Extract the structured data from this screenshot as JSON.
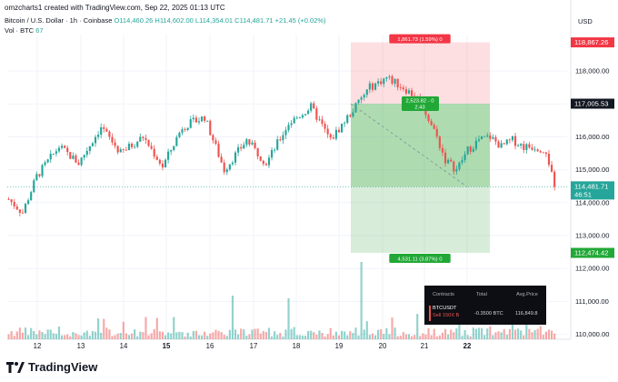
{
  "header": {
    "line1": "omzcharts1 created with TradingView.com, Sep 22, 2025 01:13 UTC",
    "title": "Bitcoin / U.S. Dollar · 1h · Coinbase",
    "open": "O114,460.26",
    "high": "H114,602.00",
    "low": "L114,354.01",
    "close": "C114,481.71",
    "change": "+21.45 (+0.02%)",
    "vol_label": "Vol · BTC",
    "vol_value": "67"
  },
  "currency": "USD",
  "logo_text": "TradingView",
  "chart_data": {
    "type": "candlestick",
    "symbol": "Bitcoin / U.S. Dollar",
    "interval": "1h",
    "exchange": "Coinbase",
    "y_ticks": [
      110000,
      111000,
      112000,
      113000,
      114000,
      115000,
      116000,
      117000,
      118000
    ],
    "y_tick_labels": [
      "110,000.00",
      "111,000.00",
      "112,000.00",
      "113,000.00",
      "114,000.00",
      "115,000.00",
      "116,000.00",
      "117,000.00",
      "118,000.00"
    ],
    "ylim": [
      109600,
      119200
    ],
    "x_ticks": [
      "12",
      "13",
      "14",
      "15",
      "16",
      "17",
      "18",
      "19",
      "20",
      "21",
      "22"
    ],
    "x_bold": [
      "15",
      "22"
    ],
    "last_price": "114,481.71",
    "countdown": "46:51",
    "approx_close_path": [
      [
        0,
        114100
      ],
      [
        5,
        113700
      ],
      [
        10,
        114800
      ],
      [
        18,
        115700
      ],
      [
        25,
        115200
      ],
      [
        33,
        116300
      ],
      [
        40,
        115500
      ],
      [
        48,
        116000
      ],
      [
        55,
        115100
      ],
      [
        62,
        116300
      ],
      [
        70,
        116600
      ],
      [
        77,
        115000
      ],
      [
        85,
        115900
      ],
      [
        92,
        115200
      ],
      [
        100,
        116400
      ],
      [
        108,
        116900
      ],
      [
        115,
        115900
      ],
      [
        122,
        116700
      ],
      [
        129,
        117500
      ],
      [
        135,
        117800
      ],
      [
        141,
        117500
      ],
      [
        147,
        117100
      ],
      [
        152,
        116200
      ],
      [
        156,
        115300
      ],
      [
        160,
        115000
      ],
      [
        164,
        115600
      ],
      [
        168,
        115900
      ],
      [
        172,
        116000
      ],
      [
        176,
        115700
      ],
      [
        180,
        115900
      ],
      [
        184,
        115700
      ],
      [
        188,
        115700
      ],
      [
        192,
        115600
      ],
      [
        195,
        114481.71
      ]
    ],
    "position": {
      "side": "short",
      "entry": 114481.71,
      "stop": 118867.26,
      "target1": 117005.53,
      "target2": 112474.42,
      "stop_label": "1,861.73 (1.59%) 0",
      "mid_label_1": "2,523.82 - 0",
      "mid_label_2": "2.43",
      "target_label": "4,531.11 (3.87%) 0",
      "price_tags": [
        "118,867.26",
        "117,005.53",
        "112,474.42"
      ]
    },
    "colors": {
      "up": "#26a69a",
      "down": "#ef5350",
      "grid": "#f0f3fa",
      "profit": "#4caf50",
      "loss": "#f23645"
    }
  },
  "positions_table": {
    "headers": [
      "Contracts",
      "Total",
      "Avg.Price"
    ],
    "symbol": "BTCUSDT",
    "side": "Sell 150X",
    "side_tag": "B",
    "total": "-0.3500 BTC",
    "avg_price": "116,849.8"
  }
}
